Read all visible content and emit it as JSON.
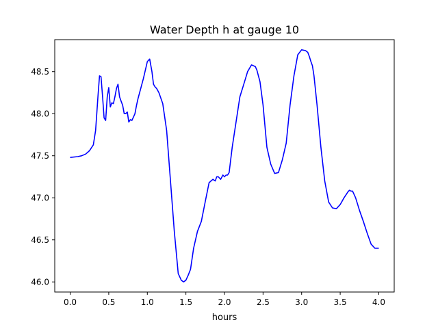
{
  "chart_data": {
    "type": "line",
    "title": "Water Depth h at gauge 10",
    "xlabel": "hours",
    "ylabel": "",
    "xlim": [
      -0.2,
      4.2
    ],
    "ylim": [
      45.88,
      48.88
    ],
    "xticks": [
      0.0,
      0.5,
      1.0,
      1.5,
      2.0,
      2.5,
      3.0,
      3.5,
      4.0
    ],
    "xtick_labels": [
      "0.0",
      "0.5",
      "1.0",
      "1.5",
      "2.0",
      "2.5",
      "3.0",
      "3.5",
      "4.0"
    ],
    "yticks": [
      46.0,
      46.5,
      47.0,
      47.5,
      48.0,
      48.5
    ],
    "ytick_labels": [
      "46.0",
      "46.5",
      "47.0",
      "47.5",
      "48.0",
      "48.5"
    ],
    "grid": false,
    "series": [
      {
        "color": "#0000ff",
        "x": [
          0.0,
          0.1,
          0.15,
          0.2,
          0.25,
          0.3,
          0.33,
          0.36,
          0.38,
          0.4,
          0.42,
          0.44,
          0.46,
          0.48,
          0.5,
          0.52,
          0.54,
          0.56,
          0.58,
          0.6,
          0.62,
          0.64,
          0.66,
          0.68,
          0.7,
          0.72,
          0.74,
          0.76,
          0.78,
          0.8,
          0.82,
          0.84,
          0.86,
          0.88,
          0.9,
          0.95,
          1.0,
          1.03,
          1.06,
          1.08,
          1.1,
          1.12,
          1.15,
          1.2,
          1.25,
          1.3,
          1.35,
          1.4,
          1.44,
          1.47,
          1.5,
          1.53,
          1.56,
          1.6,
          1.65,
          1.7,
          1.75,
          1.8,
          1.85,
          1.88,
          1.9,
          1.92,
          1.95,
          1.98,
          2.0,
          2.02,
          2.04,
          2.06,
          2.1,
          2.15,
          2.2,
          2.25,
          2.3,
          2.35,
          2.4,
          2.42,
          2.44,
          2.46,
          2.5,
          2.55,
          2.6,
          2.65,
          2.7,
          2.75,
          2.8,
          2.85,
          2.9,
          2.95,
          3.0,
          3.05,
          3.08,
          3.1,
          3.12,
          3.14,
          3.16,
          3.2,
          3.25,
          3.3,
          3.35,
          3.4,
          3.45,
          3.5,
          3.55,
          3.6,
          3.62,
          3.64,
          3.66,
          3.68,
          3.7,
          3.75,
          3.8,
          3.85,
          3.9,
          3.95,
          4.0
        ],
        "y": [
          47.48,
          47.49,
          47.5,
          47.52,
          47.56,
          47.63,
          47.8,
          48.2,
          48.45,
          48.44,
          48.2,
          47.95,
          47.92,
          48.2,
          48.31,
          48.08,
          48.13,
          48.12,
          48.2,
          48.3,
          48.35,
          48.2,
          48.15,
          48.1,
          48.0,
          48.0,
          48.02,
          47.9,
          47.93,
          47.92,
          47.96,
          48.0,
          48.1,
          48.18,
          48.25,
          48.42,
          48.62,
          48.65,
          48.5,
          48.35,
          48.32,
          48.3,
          48.25,
          48.12,
          47.8,
          47.2,
          46.6,
          46.1,
          46.02,
          46.0,
          46.02,
          46.08,
          46.15,
          46.4,
          46.6,
          46.72,
          46.95,
          47.18,
          47.22,
          47.2,
          47.25,
          47.25,
          47.22,
          47.27,
          47.25,
          47.27,
          47.27,
          47.3,
          47.6,
          47.9,
          48.2,
          48.35,
          48.5,
          48.58,
          48.56,
          48.52,
          48.45,
          48.38,
          48.1,
          47.6,
          47.4,
          47.29,
          47.3,
          47.45,
          47.65,
          48.1,
          48.45,
          48.7,
          48.76,
          48.75,
          48.73,
          48.68,
          48.62,
          48.57,
          48.45,
          48.1,
          47.6,
          47.2,
          46.95,
          46.88,
          46.87,
          46.92,
          47.0,
          47.07,
          47.09,
          47.08,
          47.08,
          47.04,
          47.0,
          46.85,
          46.72,
          46.58,
          46.45,
          46.4,
          46.4
        ]
      }
    ]
  }
}
